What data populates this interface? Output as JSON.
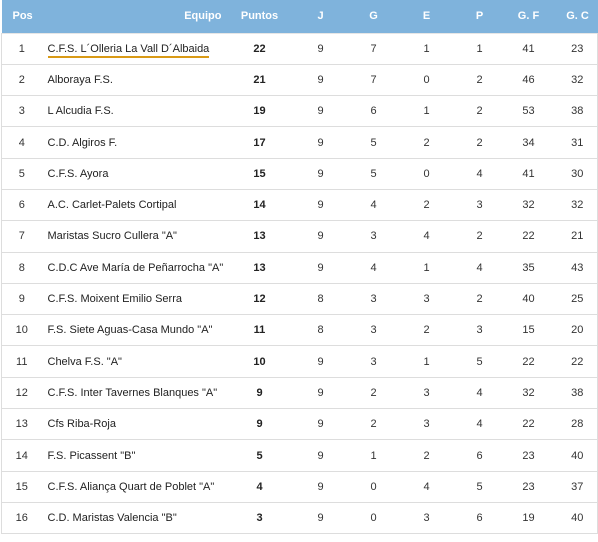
{
  "headers": {
    "pos": "Pos",
    "team": "Equipo",
    "pts": "Puntos",
    "j": "J",
    "g": "G",
    "e": "E",
    "p": "P",
    "gf": "G. F",
    "gc": "G. C"
  },
  "rows": [
    {
      "pos": "1",
      "team": "C.F.S. L´Olleria La Vall D´Albaida",
      "pts": "22",
      "j": "9",
      "g": "7",
      "e": "1",
      "p": "1",
      "gf": "41",
      "gc": "23"
    },
    {
      "pos": "2",
      "team": "Alboraya F.S.",
      "pts": "21",
      "j": "9",
      "g": "7",
      "e": "0",
      "p": "2",
      "gf": "46",
      "gc": "32"
    },
    {
      "pos": "3",
      "team": "L Alcudia F.S.",
      "pts": "19",
      "j": "9",
      "g": "6",
      "e": "1",
      "p": "2",
      "gf": "53",
      "gc": "38"
    },
    {
      "pos": "4",
      "team": "C.D. Algiros F.",
      "pts": "17",
      "j": "9",
      "g": "5",
      "e": "2",
      "p": "2",
      "gf": "34",
      "gc": "31"
    },
    {
      "pos": "5",
      "team": "C.F.S. Ayora",
      "pts": "15",
      "j": "9",
      "g": "5",
      "e": "0",
      "p": "4",
      "gf": "41",
      "gc": "30"
    },
    {
      "pos": "6",
      "team": "A.C. Carlet-Palets Cortipal",
      "pts": "14",
      "j": "9",
      "g": "4",
      "e": "2",
      "p": "3",
      "gf": "32",
      "gc": "32"
    },
    {
      "pos": "7",
      "team": "Maristas Sucro Cullera \"A\"",
      "pts": "13",
      "j": "9",
      "g": "3",
      "e": "4",
      "p": "2",
      "gf": "22",
      "gc": "21"
    },
    {
      "pos": "8",
      "team": "C.D.C Ave María de Peñarrocha \"A\"",
      "pts": "13",
      "j": "9",
      "g": "4",
      "e": "1",
      "p": "4",
      "gf": "35",
      "gc": "43"
    },
    {
      "pos": "9",
      "team": "C.F.S. Moixent Emilio Serra",
      "pts": "12",
      "j": "8",
      "g": "3",
      "e": "3",
      "p": "2",
      "gf": "40",
      "gc": "25"
    },
    {
      "pos": "10",
      "team": "F.S. Siete Aguas-Casa Mundo \"A\"",
      "pts": "11",
      "j": "8",
      "g": "3",
      "e": "2",
      "p": "3",
      "gf": "15",
      "gc": "20"
    },
    {
      "pos": "11",
      "team": "Chelva F.S. \"A\"",
      "pts": "10",
      "j": "9",
      "g": "3",
      "e": "1",
      "p": "5",
      "gf": "22",
      "gc": "22"
    },
    {
      "pos": "12",
      "team": "C.F.S. Inter Tavernes Blanques  \"A\"",
      "pts": "9",
      "j": "9",
      "g": "2",
      "e": "3",
      "p": "4",
      "gf": "32",
      "gc": "38"
    },
    {
      "pos": "13",
      "team": "Cfs Riba-Roja",
      "pts": "9",
      "j": "9",
      "g": "2",
      "e": "3",
      "p": "4",
      "gf": "22",
      "gc": "28"
    },
    {
      "pos": "14",
      "team": "F.S. Picassent \"B\"",
      "pts": "5",
      "j": "9",
      "g": "1",
      "e": "2",
      "p": "6",
      "gf": "23",
      "gc": "40"
    },
    {
      "pos": "15",
      "team": "C.F.S. Aliança Quart de Poblet \"A\"",
      "pts": "4",
      "j": "9",
      "g": "0",
      "e": "4",
      "p": "5",
      "gf": "23",
      "gc": "37"
    },
    {
      "pos": "16",
      "team": "C.D. Maristas Valencia \"B\"",
      "pts": "3",
      "j": "9",
      "g": "0",
      "e": "3",
      "p": "6",
      "gf": "19",
      "gc": "40"
    }
  ],
  "highlighted_row": 0,
  "colors": {
    "header_bg": "#7fb3dc",
    "header_text": "#ffffff",
    "highlight_underline": "#d99a16",
    "row_border": "#dddddd"
  }
}
